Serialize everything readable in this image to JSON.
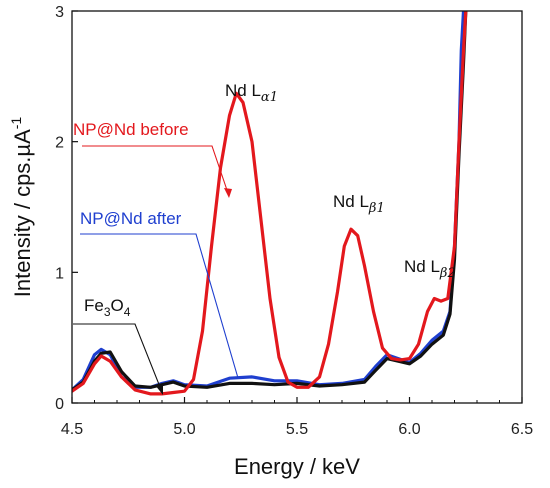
{
  "chart_data": {
    "type": "line",
    "xlabel": "Energy / keV",
    "ylabel": "Intensity / cps.µA",
    "ylabel_superscript": "-1",
    "xlim": [
      4.5,
      6.5
    ],
    "ylim": [
      0,
      3
    ],
    "x_ticks": [
      "4.5",
      "5.0",
      "5.5",
      "6.0",
      "6.5"
    ],
    "y_ticks": [
      "0",
      "1",
      "2",
      "3"
    ],
    "grid": false,
    "series": [
      {
        "name": "NP@Nd before",
        "color": "#e3181d",
        "points": [
          [
            4.5,
            0.09
          ],
          [
            4.55,
            0.15
          ],
          [
            4.6,
            0.3
          ],
          [
            4.63,
            0.36
          ],
          [
            4.67,
            0.32
          ],
          [
            4.72,
            0.2
          ],
          [
            4.78,
            0.1
          ],
          [
            4.85,
            0.07
          ],
          [
            4.9,
            0.07
          ],
          [
            4.95,
            0.08
          ],
          [
            5.0,
            0.09
          ],
          [
            5.04,
            0.18
          ],
          [
            5.08,
            0.55
          ],
          [
            5.12,
            1.2
          ],
          [
            5.16,
            1.8
          ],
          [
            5.2,
            2.2
          ],
          [
            5.23,
            2.37
          ],
          [
            5.26,
            2.3
          ],
          [
            5.3,
            2.0
          ],
          [
            5.34,
            1.4
          ],
          [
            5.38,
            0.8
          ],
          [
            5.42,
            0.35
          ],
          [
            5.46,
            0.16
          ],
          [
            5.5,
            0.12
          ],
          [
            5.55,
            0.12
          ],
          [
            5.6,
            0.2
          ],
          [
            5.64,
            0.45
          ],
          [
            5.68,
            0.85
          ],
          [
            5.71,
            1.2
          ],
          [
            5.74,
            1.33
          ],
          [
            5.77,
            1.28
          ],
          [
            5.8,
            1.05
          ],
          [
            5.84,
            0.7
          ],
          [
            5.88,
            0.42
          ],
          [
            5.92,
            0.34
          ],
          [
            5.96,
            0.33
          ],
          [
            6.0,
            0.34
          ],
          [
            6.04,
            0.45
          ],
          [
            6.08,
            0.7
          ],
          [
            6.11,
            0.8
          ],
          [
            6.14,
            0.78
          ],
          [
            6.17,
            0.8
          ],
          [
            6.2,
            1.2
          ],
          [
            6.22,
            2.0
          ],
          [
            6.24,
            2.7
          ],
          [
            6.25,
            3.0
          ]
        ]
      },
      {
        "name": "NP@Nd after",
        "color": "#1f3fcf",
        "points": [
          [
            4.5,
            0.1
          ],
          [
            4.55,
            0.18
          ],
          [
            4.6,
            0.37
          ],
          [
            4.63,
            0.41
          ],
          [
            4.67,
            0.37
          ],
          [
            4.72,
            0.2
          ],
          [
            4.78,
            0.12
          ],
          [
            4.85,
            0.12
          ],
          [
            4.9,
            0.15
          ],
          [
            4.95,
            0.17
          ],
          [
            5.0,
            0.14
          ],
          [
            5.1,
            0.13
          ],
          [
            5.2,
            0.19
          ],
          [
            5.3,
            0.2
          ],
          [
            5.4,
            0.17
          ],
          [
            5.5,
            0.17
          ],
          [
            5.6,
            0.14
          ],
          [
            5.7,
            0.15
          ],
          [
            5.8,
            0.18
          ],
          [
            5.85,
            0.28
          ],
          [
            5.9,
            0.37
          ],
          [
            5.95,
            0.34
          ],
          [
            6.0,
            0.31
          ],
          [
            6.05,
            0.38
          ],
          [
            6.1,
            0.48
          ],
          [
            6.15,
            0.55
          ],
          [
            6.18,
            0.7
          ],
          [
            6.2,
            1.2
          ],
          [
            6.22,
            2.0
          ],
          [
            6.23,
            2.7
          ],
          [
            6.24,
            3.0
          ]
        ]
      },
      {
        "name": "Fe3O4",
        "color": "#111111",
        "points": [
          [
            4.5,
            0.1
          ],
          [
            4.55,
            0.16
          ],
          [
            4.6,
            0.32
          ],
          [
            4.63,
            0.38
          ],
          [
            4.67,
            0.39
          ],
          [
            4.72,
            0.24
          ],
          [
            4.78,
            0.13
          ],
          [
            4.85,
            0.12
          ],
          [
            4.9,
            0.14
          ],
          [
            4.95,
            0.16
          ],
          [
            5.0,
            0.13
          ],
          [
            5.1,
            0.12
          ],
          [
            5.2,
            0.15
          ],
          [
            5.3,
            0.15
          ],
          [
            5.4,
            0.14
          ],
          [
            5.5,
            0.15
          ],
          [
            5.6,
            0.13
          ],
          [
            5.7,
            0.14
          ],
          [
            5.8,
            0.16
          ],
          [
            5.85,
            0.25
          ],
          [
            5.9,
            0.34
          ],
          [
            5.95,
            0.32
          ],
          [
            6.0,
            0.3
          ],
          [
            6.05,
            0.36
          ],
          [
            6.1,
            0.45
          ],
          [
            6.15,
            0.52
          ],
          [
            6.18,
            0.68
          ],
          [
            6.2,
            1.1
          ],
          [
            6.22,
            1.9
          ],
          [
            6.24,
            2.6
          ],
          [
            6.25,
            3.0
          ]
        ]
      }
    ],
    "annotations": {
      "before_label": "NP@Nd before",
      "after_label": "NP@Nd after",
      "fe_main": "Fe",
      "fe_sub1": "3",
      "fe_mid": "O",
      "fe_sub2": "4",
      "la1_main": "Nd L",
      "la1_sub": "α1",
      "lb1_main": "Nd L",
      "lb1_sub": "β1",
      "lb2_main": "Nd L",
      "lb2_sub": "β2"
    }
  }
}
